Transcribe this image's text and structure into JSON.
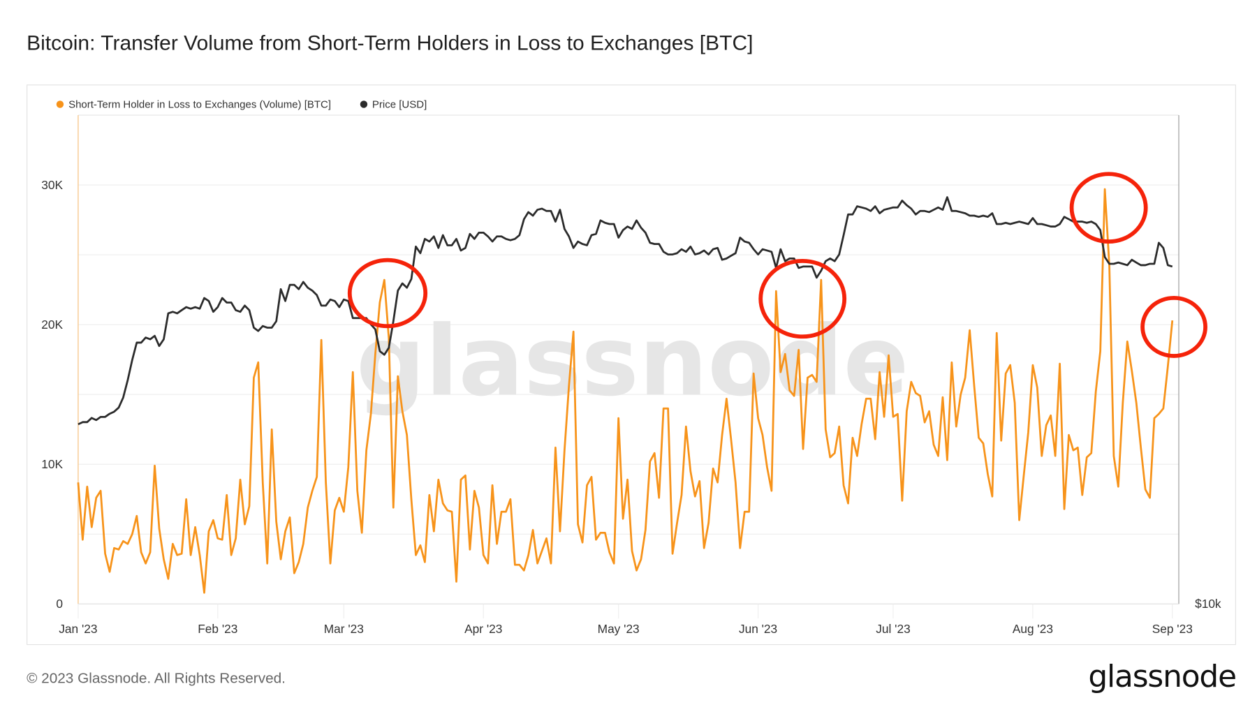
{
  "title": "Bitcoin: Transfer Volume from Short-Term Holders in Loss to Exchanges [BTC]",
  "footer": "© 2023 Glassnode. All Rights Reserved.",
  "logo": "glassnode",
  "watermark": "glassnode",
  "colors": {
    "volume": "#f7931a",
    "price": "#2b2b2b",
    "annotation": "#f5230a",
    "grid": "#eeeeee"
  },
  "chart_data": {
    "type": "line",
    "title": "Bitcoin: Transfer Volume from Short-Term Holders in Loss to Exchanges [BTC]",
    "x_range": [
      "2023-01-01",
      "2023-09-01"
    ],
    "interval": "1d",
    "x_ticks": [
      "Jan '23",
      "Feb '23",
      "Mar '23",
      "Apr '23",
      "May '23",
      "Jun '23",
      "Jul '23",
      "Aug '23",
      "Sep '23"
    ],
    "y_ticks": [
      "0",
      "10K",
      "20K",
      "30K"
    ],
    "ylim": [
      0,
      35000
    ],
    "y2_ticks": [
      "$10k"
    ],
    "y2_scale": "log",
    "y2lim": [
      10000,
      39700
    ],
    "grid": true,
    "legend": "top-left",
    "series": [
      {
        "name": "Short-Term Holder in Loss to Exchanges (Volume) [BTC]",
        "axis": "left",
        "values": [
          8700,
          4600,
          8400,
          5500,
          7600,
          8100,
          3600,
          2300,
          4000,
          3900,
          4500,
          4300,
          5000,
          6300,
          3700,
          2900,
          3700,
          9900,
          5400,
          3200,
          1800,
          4300,
          3500,
          3600,
          7500,
          3500,
          5500,
          3500,
          800,
          5200,
          6000,
          4700,
          4600,
          7800,
          3500,
          4700,
          8900,
          5700,
          7000,
          16200,
          17300,
          8700,
          2900,
          12500,
          5900,
          3200,
          5200,
          6200,
          2200,
          3000,
          4300,
          6900,
          8100,
          9100,
          18900,
          8700,
          2900,
          6700,
          7600,
          6600,
          9800,
          16600,
          8100,
          5100,
          11000,
          13600,
          17900,
          21600,
          23200,
          19000,
          6900,
          16300,
          13800,
          12100,
          7500,
          3500,
          4200,
          3000,
          7800,
          5200,
          8900,
          7200,
          6700,
          6600,
          1600,
          8900,
          9200,
          3900,
          8100,
          6900,
          3500,
          2900,
          8500,
          4300,
          6600,
          6600,
          7500,
          2800,
          2800,
          2400,
          3500,
          5300,
          2900,
          3800,
          4700,
          2900,
          11200,
          5200,
          11000,
          15600,
          19500,
          5700,
          4400,
          8500,
          9100,
          4600,
          5100,
          5100,
          3700,
          2900,
          13300,
          6100,
          8900,
          3800,
          2400,
          3200,
          5300,
          10200,
          10800,
          7600,
          14000,
          14000,
          3600,
          5800,
          7800,
          12700,
          9500,
          7700,
          8800,
          4000,
          5800,
          9700,
          8700,
          12100,
          14700,
          11800,
          8700,
          4000,
          6600,
          6600,
          16500,
          13300,
          12100,
          9800,
          8100,
          22400,
          16600,
          17900,
          15300,
          14900,
          18200,
          11100,
          16200,
          16400,
          15900,
          23200,
          12500,
          10500,
          10800,
          12700,
          8500,
          7200,
          11900,
          10600,
          12900,
          14700,
          14700,
          11800,
          16600,
          13400,
          17800,
          13400,
          13600,
          7400,
          13800,
          15900,
          15100,
          14900,
          13000,
          13800,
          11400,
          10600,
          14800,
          10300,
          17300,
          12700,
          15000,
          16200,
          19600,
          15600,
          11900,
          11500,
          9300,
          7700,
          19400,
          11700,
          16500,
          17100,
          14400,
          6000,
          9200,
          12300,
          17100,
          15500,
          10600,
          12800,
          13500,
          10600,
          17200,
          6800,
          12100,
          11000,
          11200,
          7800,
          10500,
          10800,
          15200,
          18100,
          29700,
          24200,
          10600,
          8400,
          14400,
          18800,
          16700,
          14400,
          11200,
          8200,
          7600,
          13300,
          13600,
          14000,
          17000,
          20300
        ]
      },
      {
        "name": "Price [USD]",
        "axis": "right",
        "values": [
          16600,
          16700,
          16700,
          16900,
          16800,
          16950,
          16950,
          17100,
          17200,
          17400,
          17900,
          18800,
          19900,
          20900,
          20900,
          21200,
          21100,
          21300,
          20700,
          21100,
          22700,
          22800,
          22700,
          22900,
          23100,
          23000,
          23100,
          23000,
          23700,
          23500,
          22800,
          23100,
          23700,
          23400,
          23400,
          22900,
          22800,
          23200,
          22900,
          21800,
          21600,
          21900,
          21800,
          21800,
          22200,
          24300,
          23500,
          24600,
          24600,
          24300,
          24800,
          24400,
          24200,
          23900,
          23200,
          23200,
          23600,
          23500,
          23100,
          23600,
          23500,
          22400,
          22400,
          22400,
          22400,
          22000,
          21700,
          20400,
          20200,
          20600,
          22200,
          24200,
          24700,
          24400,
          25000,
          27400,
          26900,
          28000,
          27800,
          28200,
          27300,
          28300,
          27500,
          27500,
          28000,
          27100,
          27300,
          28400,
          28000,
          28500,
          28500,
          28200,
          27800,
          28200,
          28200,
          28000,
          27900,
          28000,
          28300,
          29600,
          30200,
          29900,
          30400,
          30500,
          30300,
          30300,
          29400,
          30400,
          28800,
          28200,
          27300,
          27800,
          27600,
          27500,
          28300,
          28400,
          29500,
          29300,
          29200,
          29200,
          28100,
          28700,
          29000,
          28800,
          29500,
          28900,
          28500,
          27700,
          27600,
          27600,
          27000,
          26800,
          26800,
          26900,
          27200,
          27000,
          27400,
          26800,
          26900,
          27100,
          26800,
          27200,
          27300,
          26400,
          26500,
          26700,
          26900,
          28100,
          27800,
          27700,
          27200,
          26800,
          27200,
          27100,
          27000,
          25800,
          27200,
          26300,
          26500,
          26500,
          25800,
          25900,
          25900,
          25900,
          25100,
          25600,
          26300,
          26500,
          26300,
          26800,
          28300,
          30000,
          30000,
          30700,
          30600,
          30500,
          30300,
          30700,
          30100,
          30400,
          30500,
          30600,
          30600,
          31200,
          30800,
          30500,
          30000,
          30300,
          30300,
          30200,
          30400,
          30600,
          30400,
          31500,
          30300,
          30300,
          30200,
          30100,
          29900,
          29900,
          29800,
          29900,
          29800,
          30100,
          29200,
          29200,
          29300,
          29200,
          29300,
          29400,
          29300,
          29200,
          29700,
          29200,
          29200,
          29100,
          29000,
          29000,
          29200,
          29800,
          29600,
          29400,
          29400,
          29400,
          29300,
          29400,
          29200,
          28700,
          26600,
          26100,
          26100,
          26200,
          26100,
          26000,
          26400,
          26200,
          26000,
          26000,
          26100,
          26100,
          27700,
          27300,
          26000,
          25900
        ]
      }
    ],
    "annotations": [
      "circle around early-March spike",
      "circle around mid-June spikes",
      "circle around mid-August spike",
      "circle around end-of-period value"
    ]
  }
}
